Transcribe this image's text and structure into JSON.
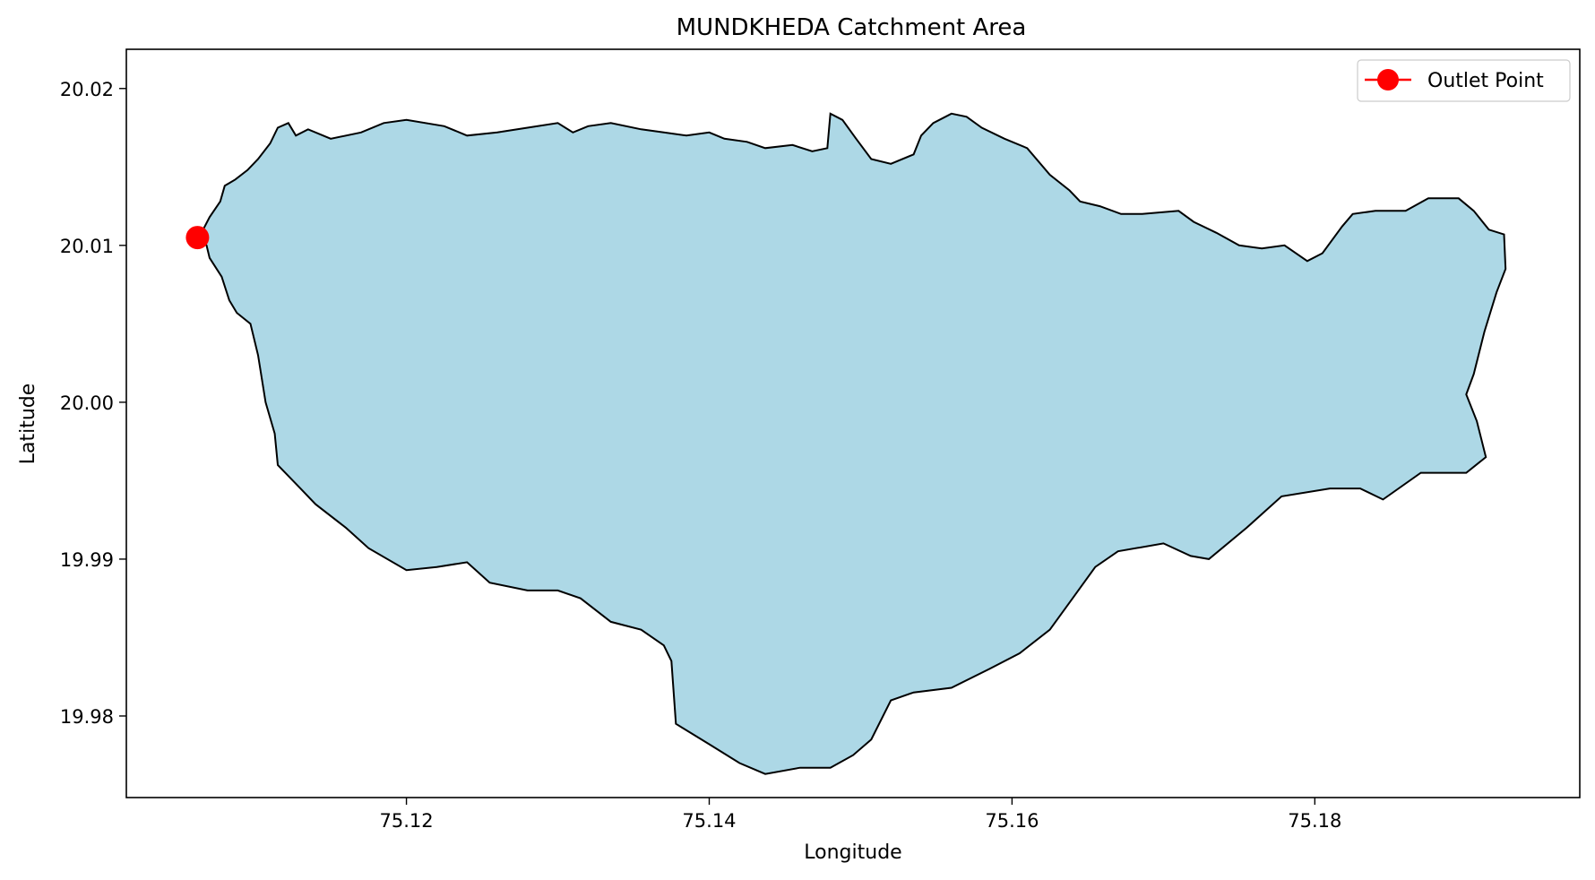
{
  "chart_data": {
    "type": "map",
    "title": "MUNDKHEDA Catchment Area",
    "xlabel": "Longitude",
    "ylabel": "Latitude",
    "xlim": [
      75.1015,
      75.1975
    ],
    "ylim": [
      19.9748,
      20.0225
    ],
    "xticks": [
      75.12,
      75.14,
      75.16,
      75.18
    ],
    "xtick_labels": [
      "75.12",
      "75.14",
      "75.16",
      "75.18"
    ],
    "yticks": [
      19.98,
      19.99,
      20.0,
      20.01,
      20.02
    ],
    "ytick_labels": [
      "19.98",
      "19.99",
      "20.00",
      "20.01",
      "20.02"
    ],
    "grid": false,
    "legend_position": "top-right",
    "catchment": {
      "fill_color": "#add8e6",
      "edge_color": "#000000",
      "boundary": [
        [
          75.1063,
          20.0105
        ],
        [
          75.107,
          20.0118
        ],
        [
          75.1077,
          20.0128
        ],
        [
          75.108,
          20.0138
        ],
        [
          75.1087,
          20.0142
        ],
        [
          75.1095,
          20.0148
        ],
        [
          75.1102,
          20.0155
        ],
        [
          75.111,
          20.0165
        ],
        [
          75.1115,
          20.0175
        ],
        [
          75.1122,
          20.0178
        ],
        [
          75.1127,
          20.017
        ],
        [
          75.1135,
          20.0174
        ],
        [
          75.115,
          20.0168
        ],
        [
          75.117,
          20.0172
        ],
        [
          75.1185,
          20.0178
        ],
        [
          75.12,
          20.018
        ],
        [
          75.1225,
          20.0176
        ],
        [
          75.124,
          20.017
        ],
        [
          75.126,
          20.0172
        ],
        [
          75.128,
          20.0175
        ],
        [
          75.13,
          20.0178
        ],
        [
          75.131,
          20.0172
        ],
        [
          75.132,
          20.0176
        ],
        [
          75.1335,
          20.0178
        ],
        [
          75.1355,
          20.0174
        ],
        [
          75.137,
          20.0172
        ],
        [
          75.1385,
          20.017
        ],
        [
          75.14,
          20.0172
        ],
        [
          75.141,
          20.0168
        ],
        [
          75.1425,
          20.0166
        ],
        [
          75.1437,
          20.0162
        ],
        [
          75.1455,
          20.0164
        ],
        [
          75.1468,
          20.016
        ],
        [
          75.1478,
          20.0162
        ],
        [
          75.148,
          20.0184
        ],
        [
          75.1488,
          20.018
        ],
        [
          75.1497,
          20.0168
        ],
        [
          75.1507,
          20.0155
        ],
        [
          75.152,
          20.0152
        ],
        [
          75.1535,
          20.0158
        ],
        [
          75.154,
          20.017
        ],
        [
          75.1548,
          20.0178
        ],
        [
          75.156,
          20.0184
        ],
        [
          75.157,
          20.0182
        ],
        [
          75.158,
          20.0175
        ],
        [
          75.1595,
          20.0168
        ],
        [
          75.161,
          20.0162
        ],
        [
          75.1625,
          20.0145
        ],
        [
          75.1638,
          20.0135
        ],
        [
          75.1645,
          20.0128
        ],
        [
          75.1658,
          20.0125
        ],
        [
          75.1672,
          20.012
        ],
        [
          75.1686,
          20.012
        ],
        [
          75.171,
          20.0122
        ],
        [
          75.172,
          20.0115
        ],
        [
          75.1735,
          20.0108
        ],
        [
          75.175,
          20.01
        ],
        [
          75.1765,
          20.0098
        ],
        [
          75.178,
          20.01
        ],
        [
          75.1795,
          20.009
        ],
        [
          75.1805,
          20.0095
        ],
        [
          75.1818,
          20.0112
        ],
        [
          75.1825,
          20.012
        ],
        [
          75.184,
          20.0122
        ],
        [
          75.186,
          20.0122
        ],
        [
          75.1875,
          20.013
        ],
        [
          75.1895,
          20.013
        ],
        [
          75.1905,
          20.0122
        ],
        [
          75.1915,
          20.011
        ],
        [
          75.1925,
          20.0107
        ],
        [
          75.1926,
          20.0085
        ],
        [
          75.192,
          20.007
        ],
        [
          75.1912,
          20.0045
        ],
        [
          75.1905,
          20.0018
        ],
        [
          75.19,
          20.0005
        ],
        [
          75.1907,
          19.9988
        ],
        [
          75.1913,
          19.9965
        ],
        [
          75.19,
          19.9955
        ],
        [
          75.187,
          19.9955
        ],
        [
          75.1845,
          19.9938
        ],
        [
          75.183,
          19.9945
        ],
        [
          75.181,
          19.9945
        ],
        [
          75.1778,
          19.994
        ],
        [
          75.1755,
          19.992
        ],
        [
          75.173,
          19.99
        ],
        [
          75.1718,
          19.9902
        ],
        [
          75.17,
          19.991
        ],
        [
          75.167,
          19.9905
        ],
        [
          75.1655,
          19.9895
        ],
        [
          75.164,
          19.9875
        ],
        [
          75.1625,
          19.9855
        ],
        [
          75.1605,
          19.984
        ],
        [
          75.1585,
          19.983
        ],
        [
          75.156,
          19.9818
        ],
        [
          75.1535,
          19.9815
        ],
        [
          75.152,
          19.981
        ],
        [
          75.1507,
          19.9785
        ],
        [
          75.1495,
          19.9775
        ],
        [
          75.148,
          19.9767
        ],
        [
          75.146,
          19.9767
        ],
        [
          75.1437,
          19.9763
        ],
        [
          75.142,
          19.977
        ],
        [
          75.14,
          19.9782
        ],
        [
          75.1378,
          19.9795
        ],
        [
          75.1375,
          19.9835
        ],
        [
          75.137,
          19.9845
        ],
        [
          75.1355,
          19.9855
        ],
        [
          75.1335,
          19.986
        ],
        [
          75.1315,
          19.9875
        ],
        [
          75.13,
          19.988
        ],
        [
          75.128,
          19.988
        ],
        [
          75.1255,
          19.9885
        ],
        [
          75.124,
          19.9898
        ],
        [
          75.122,
          19.9895
        ],
        [
          75.12,
          19.9893
        ],
        [
          75.1175,
          19.9907
        ],
        [
          75.116,
          19.992
        ],
        [
          75.114,
          19.9935
        ],
        [
          75.113,
          19.9945
        ],
        [
          75.1115,
          19.996
        ],
        [
          75.1113,
          19.998
        ],
        [
          75.1107,
          20.0
        ],
        [
          75.1102,
          20.003
        ],
        [
          75.1097,
          20.005
        ],
        [
          75.1088,
          20.0057
        ],
        [
          75.1083,
          20.0065
        ],
        [
          75.1078,
          20.008
        ],
        [
          75.107,
          20.0092
        ],
        [
          75.1068,
          20.01
        ],
        [
          75.1063,
          20.0105
        ]
      ]
    },
    "outlet": {
      "label": "Outlet Point",
      "lon": 75.1062,
      "lat": 20.0105,
      "color": "#ff0000"
    }
  }
}
